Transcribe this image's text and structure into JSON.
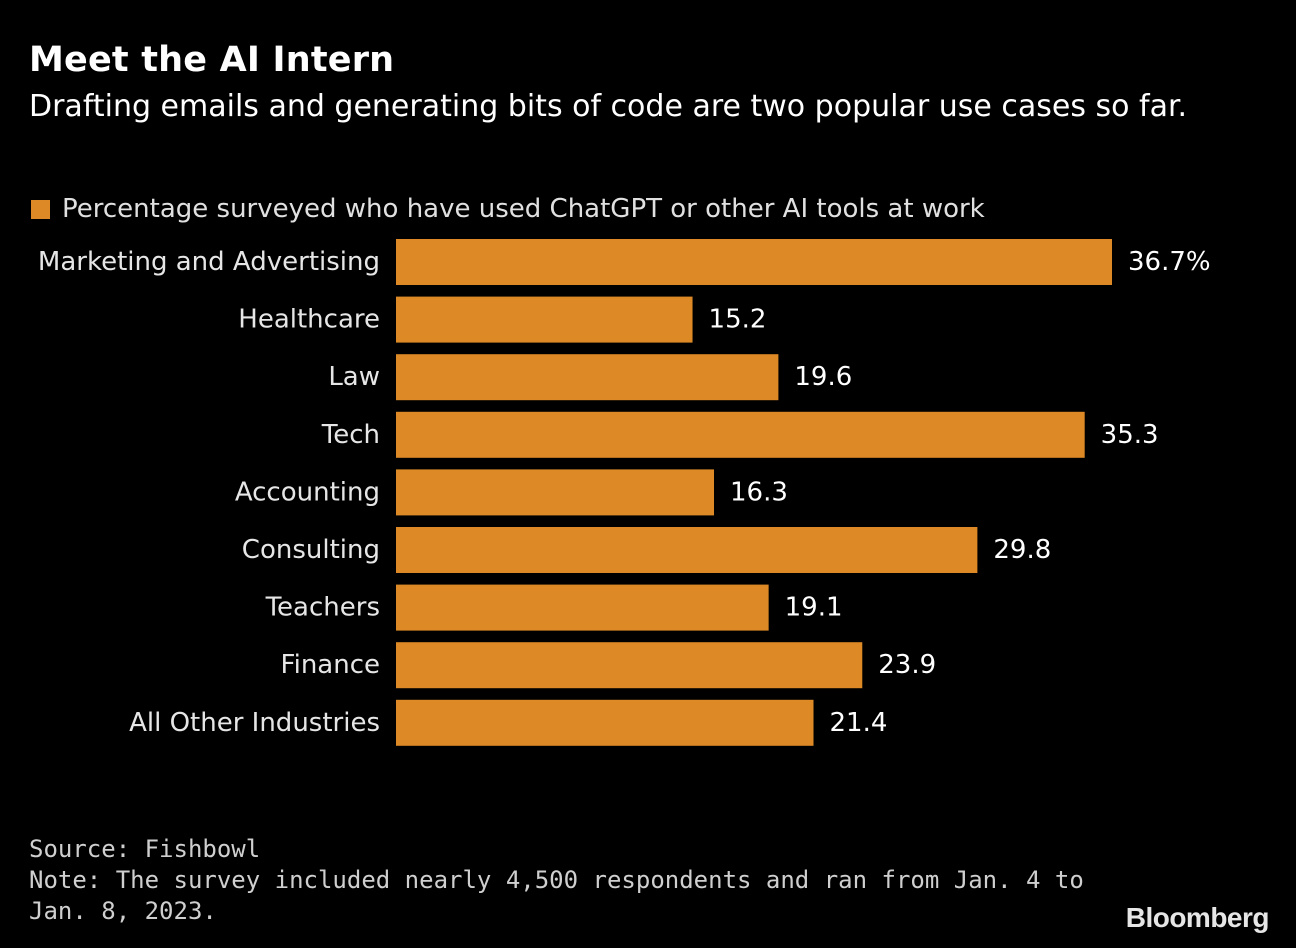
{
  "header": {
    "title": "Meet the AI Intern",
    "subtitle": "Drafting emails and generating bits of code are two popular use cases so far."
  },
  "legend": {
    "label": "Percentage surveyed who have used ChatGPT or other AI tools at work"
  },
  "colors": {
    "bar": "#DD8A26",
    "background": "#000000",
    "text": "#FFFFFF"
  },
  "chart_data": {
    "type": "bar",
    "orientation": "horizontal",
    "title": "Meet the AI Intern",
    "subtitle": "Drafting emails and generating bits of code are two popular use cases so far.",
    "xlabel": "",
    "ylabel": "",
    "xlim": [
      0,
      36.7
    ],
    "categories": [
      "Marketing and Advertising",
      "Healthcare",
      "Law",
      "Tech",
      "Accounting",
      "Consulting",
      "Teachers",
      "Finance",
      "All Other Industries"
    ],
    "values": [
      36.7,
      15.2,
      19.6,
      35.3,
      16.3,
      29.8,
      19.1,
      23.9,
      21.4
    ],
    "value_labels": [
      "36.7%",
      "15.2",
      "19.6",
      "35.3",
      "16.3",
      "29.8",
      "19.1",
      "23.9",
      "21.4"
    ],
    "series": [
      {
        "name": "Percentage surveyed who have used ChatGPT or other AI tools at work",
        "values": [
          36.7,
          15.2,
          19.6,
          35.3,
          16.3,
          29.8,
          19.1,
          23.9,
          21.4
        ]
      }
    ],
    "grid": false,
    "legend_position": "top-left"
  },
  "footer": {
    "source": "Source: Fishbowl",
    "note": "Note: The survey included nearly 4,500 respondents and ran from Jan. 4 to Jan. 8, 2023.",
    "brand": "Bloomberg"
  }
}
